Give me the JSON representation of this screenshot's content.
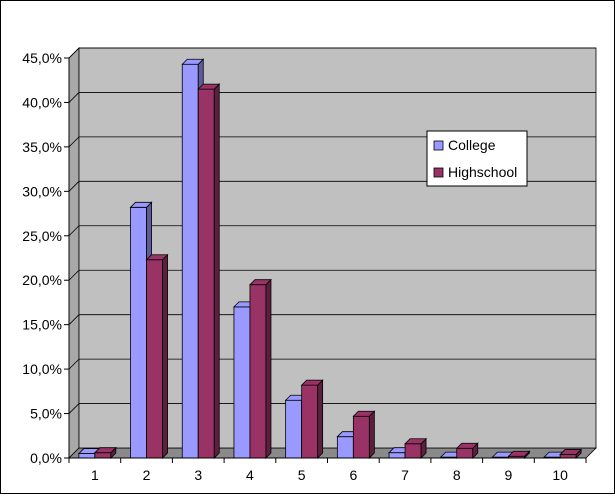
{
  "chart_data": {
    "type": "bar",
    "categories": [
      "1",
      "2",
      "3",
      "4",
      "5",
      "6",
      "7",
      "8",
      "9",
      "10"
    ],
    "series": [
      {
        "name": "College",
        "color": "#9999ff",
        "values": [
          0.5,
          28.2,
          44.3,
          17.0,
          6.5,
          2.4,
          0.6,
          0.1,
          0.1,
          0.1
        ]
      },
      {
        "name": "Highschool",
        "color": "#993366",
        "values": [
          0.6,
          22.3,
          41.5,
          19.5,
          8.2,
          4.7,
          1.6,
          1.1,
          0.2,
          0.4
        ]
      }
    ],
    "yticks": [
      "0,0%",
      "5,0%",
      "10,0%",
      "15,0%",
      "20,0%",
      "25,0%",
      "30,0%",
      "35,0%",
      "40,0%",
      "45,0%"
    ],
    "ylim": [
      0,
      45
    ],
    "grid": true,
    "plot_background": "#c0c0c0",
    "legend_position": "right"
  }
}
